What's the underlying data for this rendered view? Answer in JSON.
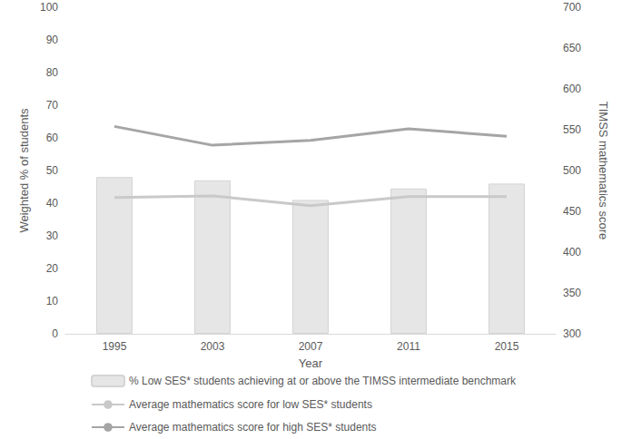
{
  "chart_data": {
    "type": "bar",
    "categories": [
      "1995",
      "2003",
      "2007",
      "2011",
      "2015"
    ],
    "xlabel": "Year",
    "ylabel": "Weighted % of students",
    "y2label": "TIMSS mathematics score",
    "ylim": [
      0,
      100
    ],
    "yticks": [
      0,
      10,
      20,
      30,
      40,
      50,
      60,
      70,
      80,
      90,
      100
    ],
    "y2lim": [
      300,
      700
    ],
    "y2ticks": [
      300,
      350,
      400,
      450,
      500,
      550,
      600,
      650,
      700
    ],
    "grid": false,
    "legend": "bottom",
    "series": [
      {
        "name": "% Low SES* students achieving at or above the TIMSS intermediate benchmark",
        "type": "bar",
        "color": "#e6e6e6",
        "values": [
          48,
          47,
          41,
          44.5,
          46
        ]
      },
      {
        "name": "Average mathematics score for low SES* students",
        "type": "line",
        "axis": "y2",
        "color": "#c9c9c9",
        "marker": "none",
        "values": [
          467,
          469,
          457,
          468,
          468
        ]
      },
      {
        "name": "Average mathematics score for high SES* students",
        "type": "line",
        "axis": "y2",
        "color": "#a5a5a5",
        "marker": "none",
        "values": [
          554,
          531,
          537,
          551,
          542
        ]
      }
    ]
  }
}
